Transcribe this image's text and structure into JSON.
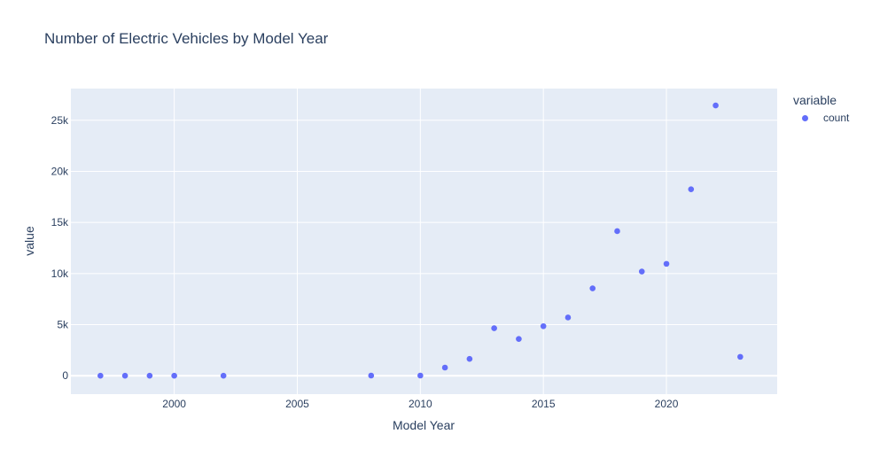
{
  "chart_data": {
    "type": "scatter",
    "title": "Number of Electric Vehicles by Model Year",
    "xlabel": "Model Year",
    "ylabel": "value",
    "legend_title": "variable",
    "legend_placement": "right",
    "grid": true,
    "xlim": [
      1995.8,
      2024.5
    ],
    "ylim": [
      -1800,
      28100
    ],
    "x_ticks": [
      2000,
      2005,
      2010,
      2015,
      2020
    ],
    "y_ticks": [
      0,
      5000,
      10000,
      15000,
      20000,
      25000
    ],
    "y_tick_labels": [
      "0",
      "5k",
      "10k",
      "15k",
      "20k",
      "25k"
    ],
    "series": [
      {
        "name": "count",
        "color": "#636efa",
        "x": [
          1997,
          1998,
          1999,
          2000,
          2002,
          2008,
          2010,
          2011,
          2012,
          2013,
          2014,
          2015,
          2016,
          2017,
          2018,
          2019,
          2020,
          2021,
          2022,
          2023
        ],
        "y": [
          1,
          1,
          5,
          7,
          2,
          20,
          20,
          800,
          1650,
          4650,
          3600,
          4850,
          5700,
          8550,
          14150,
          10200,
          10950,
          18250,
          26450,
          1850
        ]
      }
    ]
  }
}
